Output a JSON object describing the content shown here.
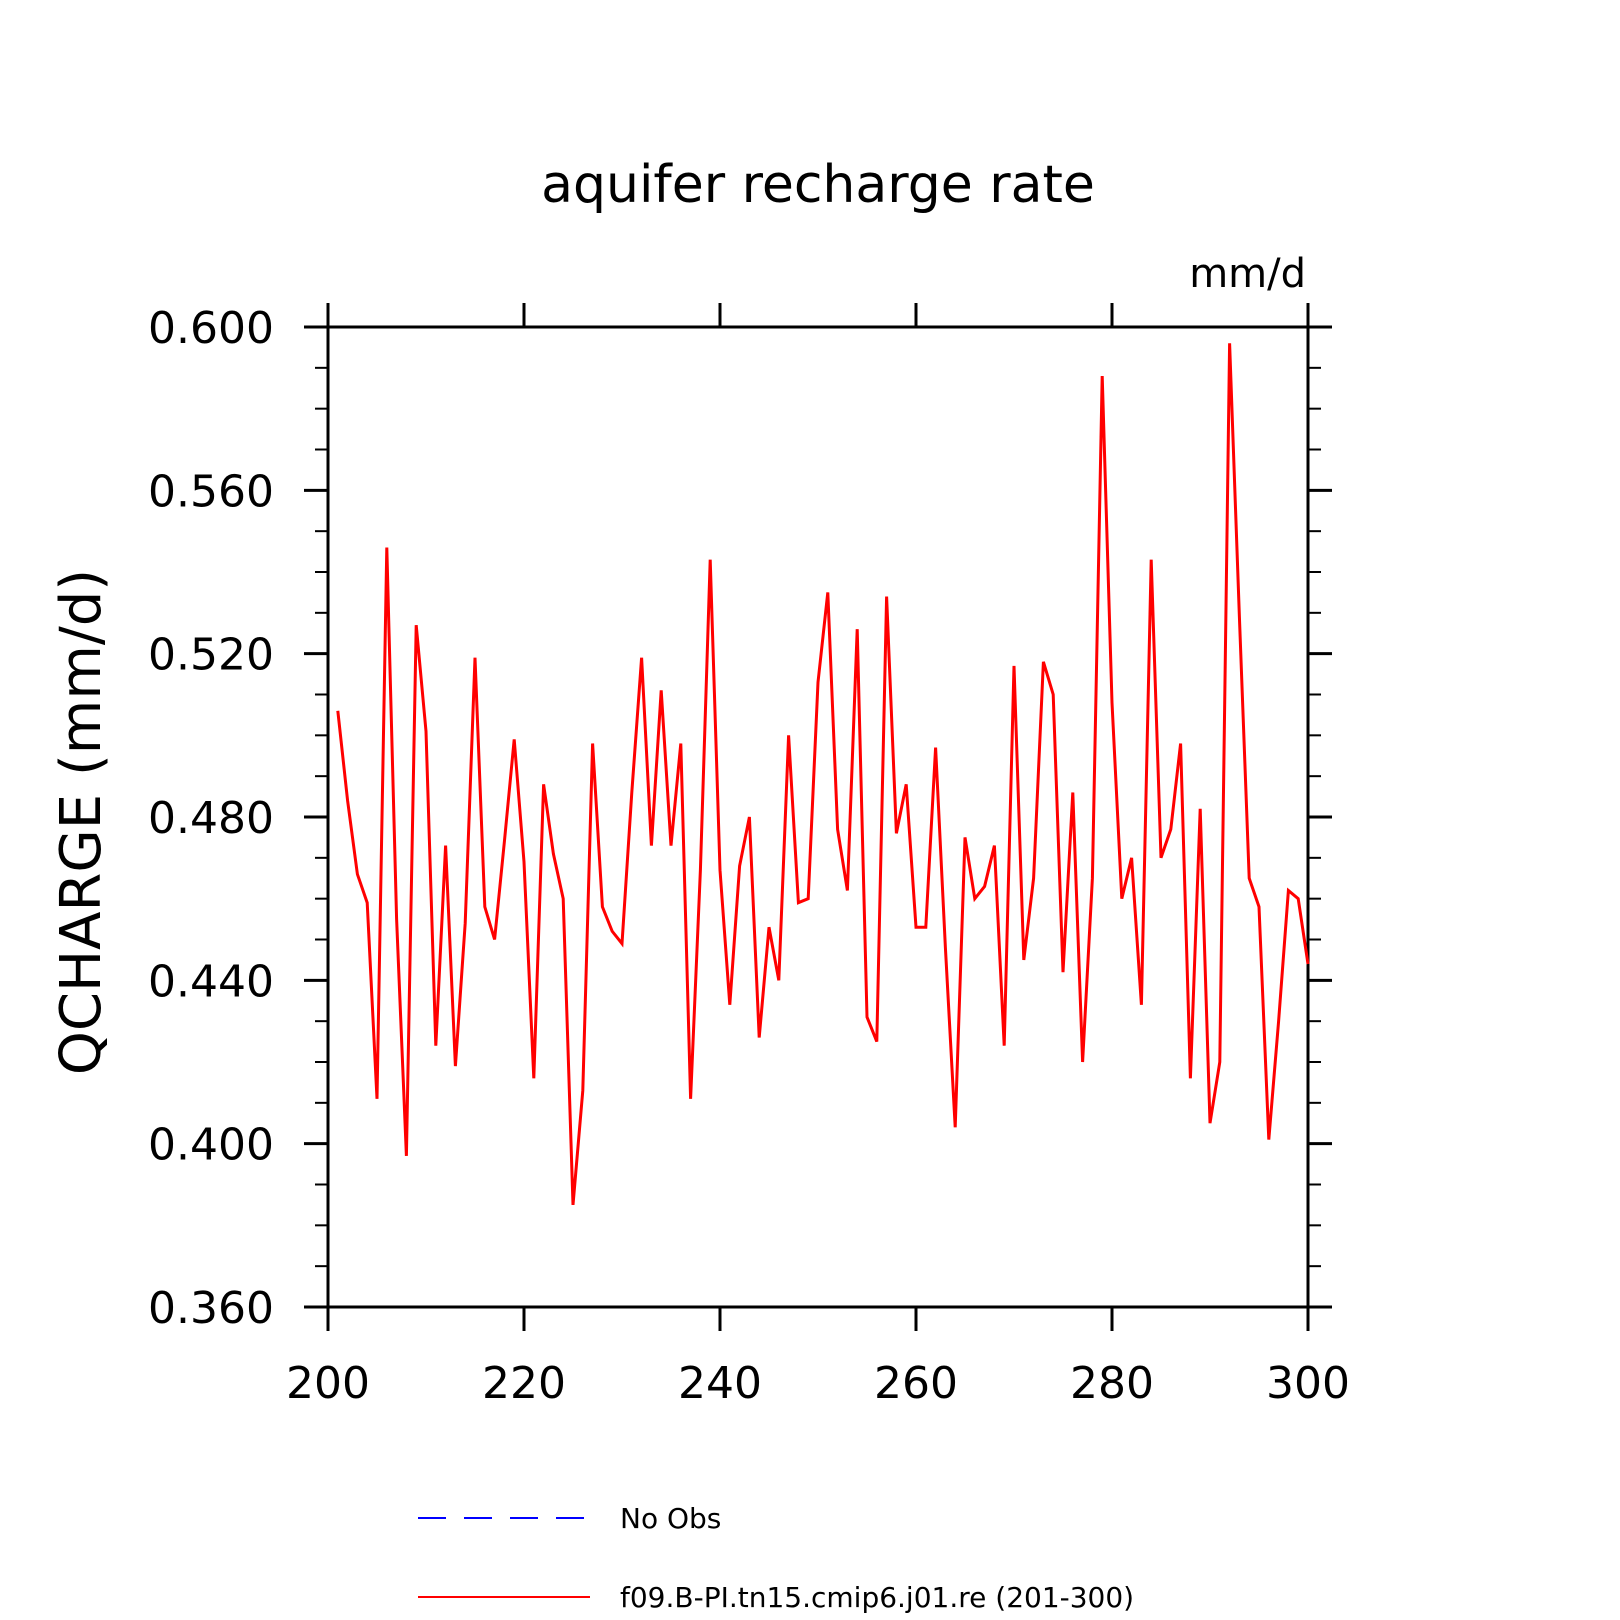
{
  "chart_data": {
    "type": "line",
    "title": "aquifer recharge rate",
    "units_label": "mm/d",
    "ylabel": "QCHARGE   (mm/d)",
    "xlabel": "",
    "xlim": [
      200,
      300
    ],
    "ylim": [
      0.36,
      0.6
    ],
    "xticks": [
      200,
      220,
      240,
      260,
      280,
      300
    ],
    "xtick_labels": [
      "200",
      "220",
      "240",
      "260",
      "280",
      "300"
    ],
    "yticks": [
      0.36,
      0.4,
      0.44,
      0.48,
      0.52,
      0.56,
      0.6
    ],
    "ytick_labels": [
      "0.360",
      "0.400",
      "0.440",
      "0.480",
      "0.520",
      "0.560",
      "0.600"
    ],
    "grid": false,
    "legend_position": "bottom",
    "series": [
      {
        "name": "No Obs",
        "color": "#0000ff",
        "style": "dashed",
        "x": [],
        "values": []
      },
      {
        "name": "f09.B-PI.tn15.cmip6.j01.re (201-300)",
        "color": "#ff0000",
        "style": "solid",
        "x": [
          201,
          202,
          203,
          204,
          205,
          206,
          207,
          208,
          209,
          210,
          211,
          212,
          213,
          214,
          215,
          216,
          217,
          218,
          219,
          220,
          221,
          222,
          223,
          224,
          225,
          226,
          227,
          228,
          229,
          230,
          231,
          232,
          233,
          234,
          235,
          236,
          237,
          238,
          239,
          240,
          241,
          242,
          243,
          244,
          245,
          246,
          247,
          248,
          249,
          250,
          251,
          252,
          253,
          254,
          255,
          256,
          257,
          258,
          259,
          260,
          261,
          262,
          263,
          264,
          265,
          266,
          267,
          268,
          269,
          270,
          271,
          272,
          273,
          274,
          275,
          276,
          277,
          278,
          279,
          280,
          281,
          282,
          283,
          284,
          285,
          286,
          287,
          288,
          289,
          290,
          291,
          292,
          293,
          294,
          295,
          296,
          297,
          298,
          299,
          300
        ],
        "values": [
          0.506,
          0.484,
          0.466,
          0.459,
          0.411,
          0.546,
          0.455,
          0.397,
          0.527,
          0.501,
          0.424,
          0.473,
          0.419,
          0.454,
          0.519,
          0.458,
          0.45,
          0.474,
          0.499,
          0.469,
          0.416,
          0.488,
          0.471,
          0.46,
          0.385,
          0.413,
          0.498,
          0.458,
          0.452,
          0.449,
          0.486,
          0.519,
          0.473,
          0.511,
          0.473,
          0.498,
          0.411,
          0.467,
          0.543,
          0.467,
          0.434,
          0.468,
          0.48,
          0.426,
          0.453,
          0.44,
          0.5,
          0.459,
          0.46,
          0.513,
          0.535,
          0.477,
          0.462,
          0.526,
          0.431,
          0.425,
          0.534,
          0.476,
          0.488,
          0.453,
          0.453,
          0.497,
          0.448,
          0.404,
          0.475,
          0.46,
          0.463,
          0.473,
          0.424,
          0.517,
          0.445,
          0.465,
          0.518,
          0.51,
          0.442,
          0.486,
          0.42,
          0.465,
          0.588,
          0.508,
          0.46,
          0.47,
          0.434,
          0.543,
          0.47,
          0.477,
          0.498,
          0.416,
          0.482,
          0.405,
          0.42,
          0.596,
          0.529,
          0.465,
          0.458,
          0.401,
          0.43,
          0.462,
          0.46,
          0.444
        ]
      }
    ]
  }
}
